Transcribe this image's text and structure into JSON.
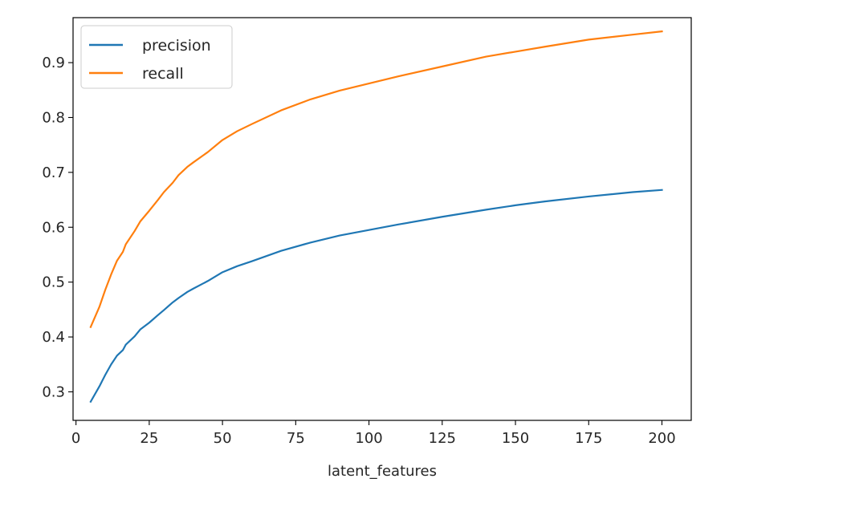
{
  "chart_data": {
    "type": "line",
    "title": "",
    "xlabel": "latent_features",
    "ylabel": "",
    "xlim": [
      -1,
      210
    ],
    "ylim": [
      0.248,
      0.982
    ],
    "grid": false,
    "legend_position": "top-left",
    "x_ticks": [
      0,
      25,
      50,
      75,
      100,
      125,
      150,
      175,
      200
    ],
    "x_tick_labels": [
      "0",
      "25",
      "50",
      "75",
      "100",
      "125",
      "150",
      "175",
      "200"
    ],
    "y_ticks": [
      0.3,
      0.4,
      0.5,
      0.6,
      0.7,
      0.8,
      0.9
    ],
    "y_tick_labels": [
      "0.3",
      "0.4",
      "0.5",
      "0.6",
      "0.7",
      "0.8",
      "0.9"
    ],
    "x": [
      5,
      8,
      10,
      12,
      14,
      16,
      17,
      20,
      22,
      25,
      28,
      30,
      33,
      35,
      38,
      40,
      45,
      50,
      55,
      60,
      70,
      80,
      90,
      100,
      110,
      125,
      140,
      150,
      160,
      175,
      190,
      200
    ],
    "series": [
      {
        "name": "precision",
        "color": "#1f77b4",
        "values": [
          0.282,
          0.31,
          0.331,
          0.35,
          0.366,
          0.376,
          0.386,
          0.401,
          0.414,
          0.426,
          0.44,
          0.449,
          0.463,
          0.471,
          0.482,
          0.488,
          0.502,
          0.518,
          0.529,
          0.538,
          0.557,
          0.572,
          0.585,
          0.595,
          0.605,
          0.619,
          0.632,
          0.64,
          0.647,
          0.656,
          0.664,
          0.668
        ]
      },
      {
        "name": "recall",
        "color": "#ff7f0e",
        "values": [
          0.418,
          0.455,
          0.486,
          0.514,
          0.539,
          0.555,
          0.569,
          0.593,
          0.611,
          0.63,
          0.65,
          0.664,
          0.681,
          0.695,
          0.71,
          0.718,
          0.737,
          0.759,
          0.775,
          0.788,
          0.813,
          0.833,
          0.849,
          0.862,
          0.875,
          0.893,
          0.911,
          0.92,
          0.929,
          0.942,
          0.951,
          0.957
        ]
      }
    ]
  }
}
